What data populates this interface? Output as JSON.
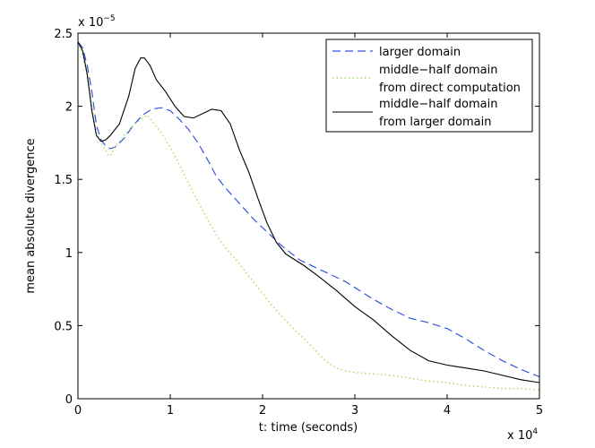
{
  "chart_data": {
    "type": "line",
    "title": "",
    "xlabel": "t: time (seconds)",
    "ylabel": "mean absolute divergence",
    "x_multiplier": {
      "base": "x 10",
      "exponent": "4"
    },
    "y_multiplier": {
      "base": "x 10",
      "exponent": "−5"
    },
    "xlim": [
      0,
      5
    ],
    "ylim": [
      0,
      2.5
    ],
    "x_ticks": [
      0,
      1,
      2,
      3,
      4,
      5
    ],
    "x_tick_labels": [
      "0",
      "1",
      "2",
      "3",
      "4",
      "5"
    ],
    "y_ticks": [
      0,
      0.5,
      1,
      1.5,
      2,
      2.5
    ],
    "y_tick_labels": [
      "0",
      "0.5",
      "1",
      "1.5",
      "2",
      "2.5"
    ],
    "legend_position": "top-right",
    "series": [
      {
        "name": "larger domain",
        "legend_lines": [
          "larger domain"
        ],
        "color": "#3355dd",
        "style": "dashed",
        "points": [
          [
            0,
            2.44
          ],
          [
            0.05,
            2.4
          ],
          [
            0.1,
            2.28
          ],
          [
            0.15,
            2.1
          ],
          [
            0.2,
            1.87
          ],
          [
            0.25,
            1.77
          ],
          [
            0.3,
            1.73
          ],
          [
            0.35,
            1.71
          ],
          [
            0.4,
            1.72
          ],
          [
            0.5,
            1.78
          ],
          [
            0.6,
            1.87
          ],
          [
            0.7,
            1.94
          ],
          [
            0.8,
            1.98
          ],
          [
            0.9,
            1.99
          ],
          [
            1.0,
            1.97
          ],
          [
            1.1,
            1.91
          ],
          [
            1.2,
            1.84
          ],
          [
            1.3,
            1.75
          ],
          [
            1.4,
            1.64
          ],
          [
            1.5,
            1.52
          ],
          [
            1.6,
            1.44
          ],
          [
            1.7,
            1.37
          ],
          [
            1.8,
            1.3
          ],
          [
            1.9,
            1.23
          ],
          [
            2.0,
            1.17
          ],
          [
            2.1,
            1.11
          ],
          [
            2.2,
            1.05
          ],
          [
            2.3,
            1.0
          ],
          [
            2.4,
            0.95
          ],
          [
            2.5,
            0.92
          ],
          [
            2.6,
            0.89
          ],
          [
            2.7,
            0.86
          ],
          [
            2.8,
            0.83
          ],
          [
            2.9,
            0.8
          ],
          [
            3.0,
            0.76
          ],
          [
            3.2,
            0.68
          ],
          [
            3.4,
            0.61
          ],
          [
            3.6,
            0.55
          ],
          [
            3.8,
            0.52
          ],
          [
            4.0,
            0.48
          ],
          [
            4.2,
            0.41
          ],
          [
            4.4,
            0.33
          ],
          [
            4.6,
            0.26
          ],
          [
            4.8,
            0.2
          ],
          [
            5.0,
            0.15
          ]
        ]
      },
      {
        "name": "middle-half domain from direct computation",
        "legend_lines": [
          "middle−half domain",
          "from direct computation"
        ],
        "color": "#a8e060",
        "style": "dotted",
        "points": [
          [
            0,
            2.44
          ],
          [
            0.05,
            2.35
          ],
          [
            0.1,
            2.2
          ],
          [
            0.15,
            2.0
          ],
          [
            0.2,
            1.82
          ],
          [
            0.25,
            1.75
          ],
          [
            0.3,
            1.7
          ],
          [
            0.33,
            1.66
          ],
          [
            0.36,
            1.67
          ],
          [
            0.4,
            1.72
          ],
          [
            0.5,
            1.8
          ],
          [
            0.6,
            1.87
          ],
          [
            0.7,
            1.92
          ],
          [
            0.75,
            1.94
          ],
          [
            0.8,
            1.9
          ],
          [
            0.9,
            1.82
          ],
          [
            1.0,
            1.72
          ],
          [
            1.1,
            1.6
          ],
          [
            1.2,
            1.47
          ],
          [
            1.3,
            1.35
          ],
          [
            1.4,
            1.23
          ],
          [
            1.5,
            1.12
          ],
          [
            1.6,
            1.03
          ],
          [
            1.7,
            0.96
          ],
          [
            1.8,
            0.88
          ],
          [
            1.9,
            0.8
          ],
          [
            2.0,
            0.72
          ],
          [
            2.1,
            0.64
          ],
          [
            2.2,
            0.57
          ],
          [
            2.3,
            0.5
          ],
          [
            2.4,
            0.44
          ],
          [
            2.5,
            0.38
          ],
          [
            2.6,
            0.31
          ],
          [
            2.7,
            0.25
          ],
          [
            2.8,
            0.21
          ],
          [
            2.9,
            0.19
          ],
          [
            3.0,
            0.18
          ],
          [
            3.2,
            0.17
          ],
          [
            3.4,
            0.16
          ],
          [
            3.6,
            0.14
          ],
          [
            3.8,
            0.12
          ],
          [
            4.0,
            0.11
          ],
          [
            4.2,
            0.09
          ],
          [
            4.4,
            0.08
          ],
          [
            4.6,
            0.07
          ],
          [
            4.8,
            0.07
          ],
          [
            5.0,
            0.06
          ]
        ]
      },
      {
        "name": "middle-half domain from larger domain",
        "legend_lines": [
          "middle−half domain",
          "from larger domain"
        ],
        "color": "#000000",
        "style": "solid",
        "points": [
          [
            0,
            2.44
          ],
          [
            0.05,
            2.38
          ],
          [
            0.1,
            2.22
          ],
          [
            0.15,
            1.97
          ],
          [
            0.2,
            1.8
          ],
          [
            0.25,
            1.76
          ],
          [
            0.3,
            1.77
          ],
          [
            0.35,
            1.8
          ],
          [
            0.45,
            1.88
          ],
          [
            0.55,
            2.07
          ],
          [
            0.62,
            2.26
          ],
          [
            0.68,
            2.33
          ],
          [
            0.72,
            2.33
          ],
          [
            0.78,
            2.28
          ],
          [
            0.85,
            2.18
          ],
          [
            0.95,
            2.1
          ],
          [
            1.05,
            2.0
          ],
          [
            1.15,
            1.93
          ],
          [
            1.25,
            1.92
          ],
          [
            1.35,
            1.95
          ],
          [
            1.45,
            1.98
          ],
          [
            1.55,
            1.97
          ],
          [
            1.65,
            1.88
          ],
          [
            1.75,
            1.7
          ],
          [
            1.85,
            1.55
          ],
          [
            1.95,
            1.37
          ],
          [
            2.05,
            1.2
          ],
          [
            2.15,
            1.07
          ],
          [
            2.25,
            0.99
          ],
          [
            2.35,
            0.95
          ],
          [
            2.45,
            0.91
          ],
          [
            2.6,
            0.84
          ],
          [
            2.8,
            0.74
          ],
          [
            3.0,
            0.63
          ],
          [
            3.2,
            0.54
          ],
          [
            3.4,
            0.43
          ],
          [
            3.6,
            0.33
          ],
          [
            3.8,
            0.26
          ],
          [
            4.0,
            0.23
          ],
          [
            4.2,
            0.21
          ],
          [
            4.4,
            0.19
          ],
          [
            4.6,
            0.16
          ],
          [
            4.8,
            0.13
          ],
          [
            5.0,
            0.11
          ]
        ]
      }
    ]
  }
}
